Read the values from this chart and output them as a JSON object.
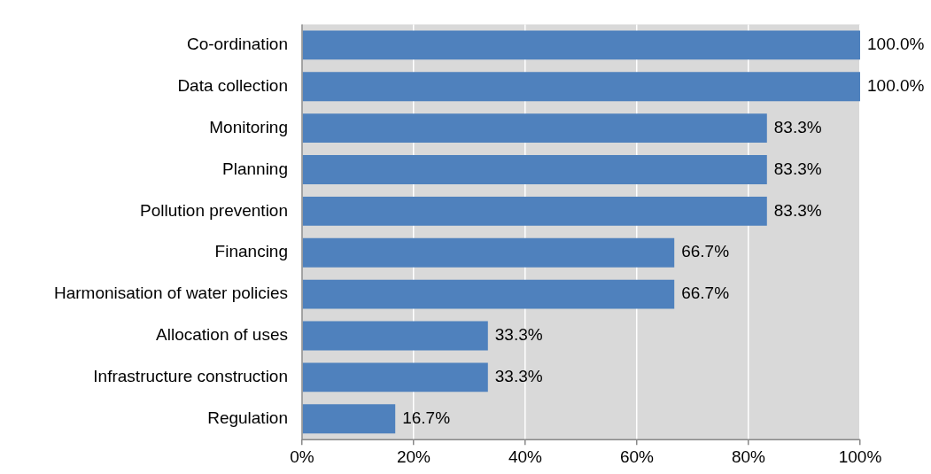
{
  "chart_data": {
    "type": "bar",
    "orientation": "horizontal",
    "categories": [
      "Co-ordination",
      "Data collection",
      "Monitoring",
      "Planning",
      "Pollution prevention",
      "Financing",
      "Harmonisation of water policies",
      "Allocation of uses",
      "Infrastructure construction",
      "Regulation"
    ],
    "values": [
      100,
      100,
      83.3,
      83.3,
      83.3,
      66.7,
      66.7,
      33.3,
      33.3,
      16.7
    ],
    "value_labels": [
      "100.0%",
      "100.0%",
      "83.3%",
      "83.3%",
      "83.3%",
      "66.7%",
      "66.7%",
      "33.3%",
      "33.3%",
      "16.7%"
    ],
    "color": "#4f81bd",
    "xlim": [
      0,
      100
    ],
    "xticks": [
      {
        "value": 0,
        "label": "0%"
      },
      {
        "value": 20,
        "label": "20%"
      },
      {
        "value": 40,
        "label": "40%"
      },
      {
        "value": 60,
        "label": "60%"
      },
      {
        "value": 80,
        "label": "80%"
      },
      {
        "value": 100,
        "label": "100%"
      }
    ],
    "grid": "x"
  }
}
